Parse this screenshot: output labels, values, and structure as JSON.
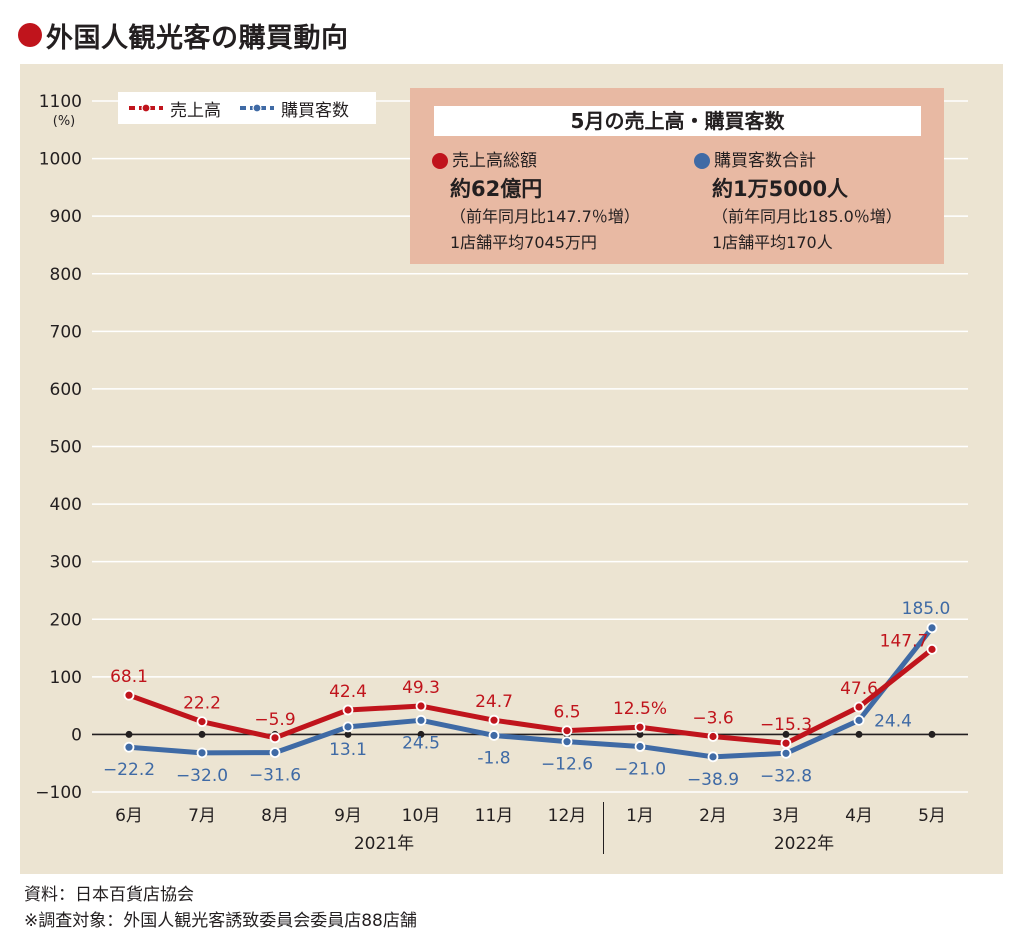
{
  "header": {
    "title": "外国人観光客の購買動向"
  },
  "legend": {
    "sales": "売上高",
    "customers": "購買客数"
  },
  "infobox": {
    "title": "5月の売上高・購買客数",
    "left": {
      "label": "売上高総額",
      "value": "約62億円",
      "change": "（前年同月比147.7％増）",
      "avg": "1店舗平均7045万円"
    },
    "right": {
      "label": "購買客数合計",
      "value": "約1万5000人",
      "change": "（前年同月比185.0％増）",
      "avg": "1店舗平均170人"
    }
  },
  "chart_data": {
    "type": "line",
    "categories": [
      "6月",
      "7月",
      "8月",
      "9月",
      "10月",
      "11月",
      "12月",
      "1月",
      "2月",
      "3月",
      "4月",
      "5月"
    ],
    "year_labels": [
      "2021年",
      "2022年"
    ],
    "ylim": [
      -100,
      1100
    ],
    "yticks": [
      -100,
      0,
      100,
      200,
      300,
      400,
      500,
      600,
      700,
      800,
      900,
      1000,
      1100
    ],
    "ylabel": "(%)",
    "grid": true,
    "series": [
      {
        "name": "売上高",
        "color": "#c0141c",
        "values": [
          68.1,
          22.2,
          -5.9,
          42.4,
          49.3,
          24.7,
          6.5,
          12.5,
          -3.6,
          -15.3,
          47.6,
          147.7
        ],
        "labels": [
          "68.1",
          "22.2",
          "−5.9",
          "42.4",
          "49.3",
          "24.7",
          "6.5",
          "12.5%",
          "−3.6",
          "−15.3",
          "47.6",
          "147.7"
        ]
      },
      {
        "name": "購買客数",
        "color": "#3f6aa5",
        "values": [
          -22.2,
          -32.0,
          -31.6,
          13.1,
          24.5,
          -1.8,
          -12.6,
          -21.0,
          -38.9,
          -32.8,
          24.4,
          185.0
        ],
        "labels": [
          "−22.2",
          "−32.0",
          "−31.6",
          "13.1",
          "24.5",
          "-1.8",
          "−12.6",
          "−21.0",
          "−38.9",
          "−32.8",
          "24.4",
          "185.0"
        ]
      }
    ]
  },
  "footer": {
    "source": "資料：日本百貨店協会",
    "note": "※調査対象：外国人観光客誘致委員会委員店88店舗"
  }
}
